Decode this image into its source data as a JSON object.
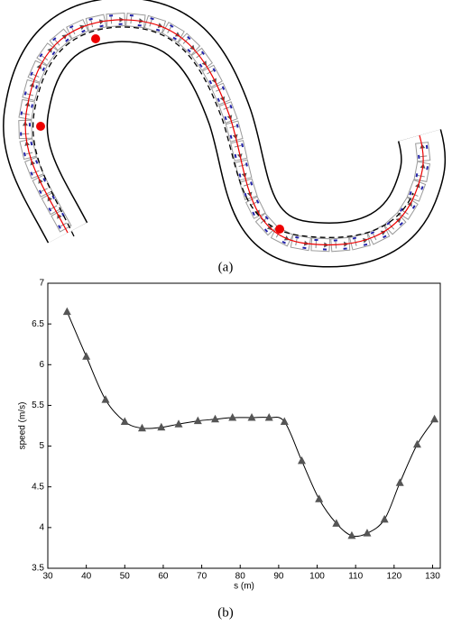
{
  "caption_a": "(a)",
  "chart_data": {
    "type": "line",
    "caption": "(b)",
    "xlabel": "s (m)",
    "ylabel": "speed (m/s)",
    "x": [
      35,
      40,
      45,
      50,
      54.5,
      59.5,
      64,
      69,
      73.5,
      78,
      83,
      87.5,
      91.5,
      96,
      100.5,
      105,
      109,
      113,
      117.5,
      121.5,
      126,
      130.5
    ],
    "series": [
      {
        "color": "#555555",
        "values": [
          6.65,
          6.1,
          5.57,
          5.3,
          5.22,
          5.23,
          5.27,
          5.31,
          5.33,
          5.35,
          5.35,
          5.35,
          5.3,
          4.82,
          4.35,
          4.05,
          3.9,
          3.93,
          4.1,
          4.55,
          5.02,
          5.33
        ]
      }
    ],
    "xlim": [
      30,
      132
    ],
    "ylim": [
      3.5,
      7
    ],
    "xticks": [
      30,
      40,
      50,
      60,
      70,
      80,
      90,
      100,
      110,
      120,
      130
    ],
    "yticks": [
      3.5,
      4,
      4.5,
      5,
      5.5,
      6,
      6.5,
      7
    ]
  }
}
